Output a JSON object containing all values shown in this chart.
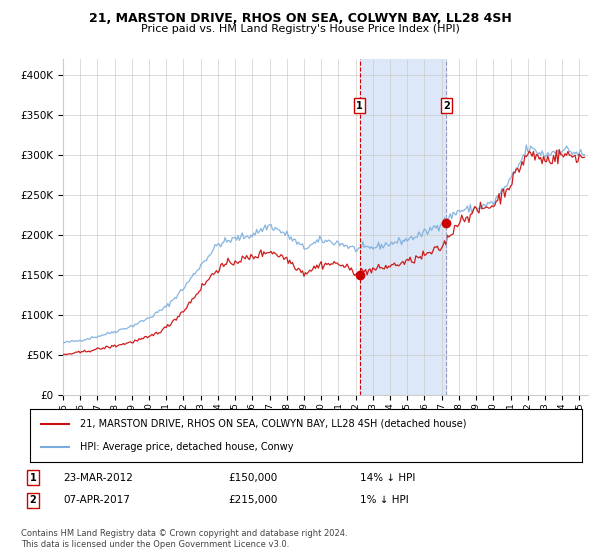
{
  "title": "21, MARSTON DRIVE, RHOS ON SEA, COLWYN BAY, LL28 4SH",
  "subtitle": "Price paid vs. HM Land Registry's House Price Index (HPI)",
  "ylim": [
    0,
    420000
  ],
  "xlim_start": 1995.0,
  "xlim_end": 2025.5,
  "yticks": [
    0,
    50000,
    100000,
    150000,
    200000,
    250000,
    300000,
    350000,
    400000
  ],
  "ytick_labels": [
    "£0",
    "£50K",
    "£100K",
    "£150K",
    "£200K",
    "£250K",
    "£300K",
    "£350K",
    "£400K"
  ],
  "xtick_years": [
    1995,
    1996,
    1997,
    1998,
    1999,
    2000,
    2001,
    2002,
    2003,
    2004,
    2005,
    2006,
    2007,
    2008,
    2009,
    2010,
    2011,
    2012,
    2013,
    2014,
    2015,
    2016,
    2017,
    2018,
    2019,
    2020,
    2021,
    2022,
    2023,
    2024,
    2025
  ],
  "transaction1_date": 2012.23,
  "transaction1_price": 150000,
  "transaction1_label": "1",
  "transaction2_date": 2017.27,
  "transaction2_price": 215000,
  "transaction2_label": "2",
  "shade_start": 2012.23,
  "shade_end": 2017.27,
  "shade_color": "#dce8f7",
  "vline1_color": "#cc0000",
  "vline2_color": "#9999bb",
  "hpi_line_color": "#7aaddd",
  "price_line_color": "#cc1111",
  "dot_color": "#cc0000",
  "grid_color": "#cccccc",
  "bg_color": "#ffffff",
  "legend_label1": "21, MARSTON DRIVE, RHOS ON SEA, COLWYN BAY, LL28 4SH (detached house)",
  "legend_label2": "HPI: Average price, detached house, Conwy",
  "row1_label": "1",
  "row1_date": "23-MAR-2012",
  "row1_price": "£150,000",
  "row1_pct": "14% ↓ HPI",
  "row2_label": "2",
  "row2_date": "07-APR-2017",
  "row2_price": "£215,000",
  "row2_pct": "1% ↓ HPI",
  "footer": "Contains HM Land Registry data © Crown copyright and database right 2024.\nThis data is licensed under the Open Government Licence v3.0."
}
